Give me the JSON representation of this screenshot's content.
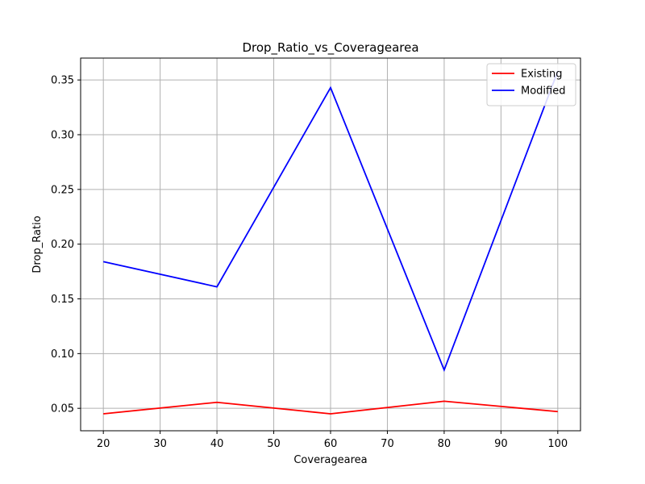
{
  "chart_data": {
    "type": "line",
    "title": "Drop_Ratio_vs_Coveragearea",
    "xlabel": "Coveragearea",
    "ylabel": "Drop_Ratio",
    "x": [
      20,
      40,
      60,
      80,
      100
    ],
    "xlim": [
      16,
      104
    ],
    "ylim": [
      0.0295,
      0.37
    ],
    "xticks": [
      20,
      30,
      40,
      50,
      60,
      70,
      80,
      90,
      100
    ],
    "yticks": [
      0.05,
      0.1,
      0.15,
      0.2,
      0.25,
      0.3,
      0.35
    ],
    "ytick_labels": [
      "0.05",
      "0.10",
      "0.15",
      "0.20",
      "0.25",
      "0.30",
      "0.35"
    ],
    "grid": true,
    "legend_position": "top-right",
    "series": [
      {
        "name": "Existing",
        "color": "#ff0000",
        "values": [
          0.045,
          0.0555,
          0.045,
          0.0565,
          0.047
        ]
      },
      {
        "name": "Modified",
        "color": "#0000ff",
        "values": [
          0.184,
          0.161,
          0.343,
          0.085,
          0.358
        ]
      }
    ]
  }
}
